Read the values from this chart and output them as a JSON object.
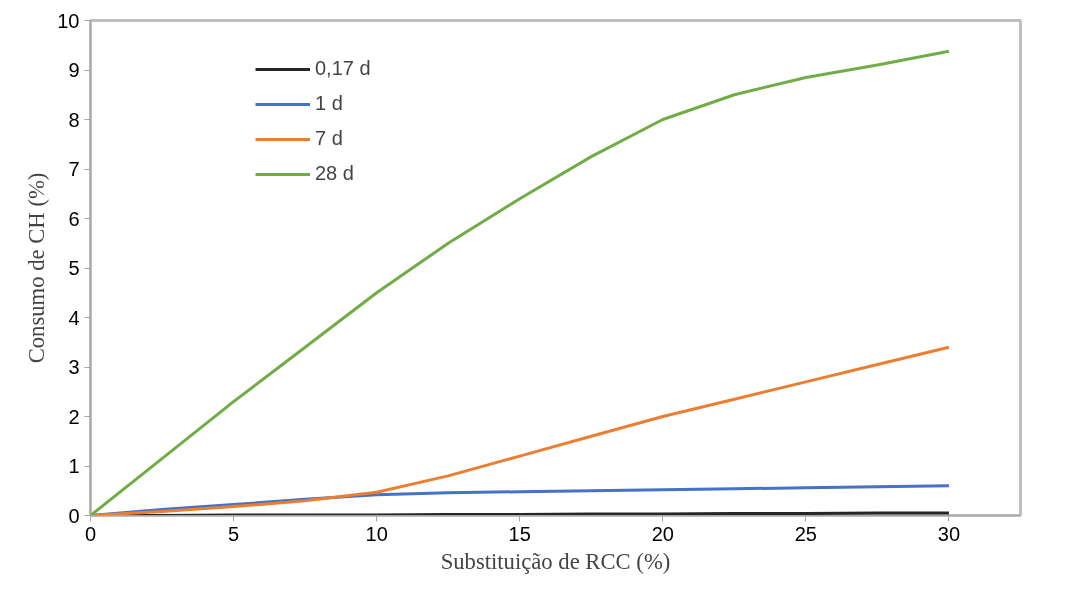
{
  "chart_data": {
    "type": "line",
    "xlabel": "Substituição de RCC (%)",
    "ylabel": "Consumo de CH (%)",
    "x": [
      0,
      2.5,
      5,
      7.5,
      10,
      12.5,
      15,
      17.5,
      20,
      22.5,
      25,
      27.5,
      30
    ],
    "series": [
      {
        "name": "0,17 d",
        "color": "#262626",
        "values": [
          0,
          0,
          0.01,
          0.01,
          0.01,
          0.02,
          0.02,
          0.03,
          0.03,
          0.04,
          0.04,
          0.05,
          0.05
        ]
      },
      {
        "name": "1 d",
        "color": "#4472c4",
        "values": [
          0,
          0.12,
          0.22,
          0.33,
          0.42,
          0.46,
          0.48,
          0.5,
          0.52,
          0.54,
          0.56,
          0.58,
          0.6
        ]
      },
      {
        "name": "7 d",
        "color": "#ed7d31",
        "values": [
          0,
          0.08,
          0.18,
          0.3,
          0.47,
          0.8,
          1.2,
          1.6,
          2.0,
          2.35,
          2.7,
          3.05,
          3.4
        ]
      },
      {
        "name": "28 d",
        "color": "#70ad47",
        "values": [
          0,
          1.15,
          2.3,
          3.4,
          4.5,
          5.5,
          6.4,
          7.25,
          8.0,
          8.5,
          8.85,
          9.1,
          9.38
        ]
      }
    ],
    "xlim": [
      0,
      32.5
    ],
    "ylim": [
      0,
      10
    ],
    "xticks": [
      0,
      5,
      10,
      15,
      20,
      25,
      30
    ],
    "yticks": [
      0,
      1,
      2,
      3,
      4,
      5,
      6,
      7,
      8,
      9,
      10
    ],
    "grid": false,
    "legend": "top left",
    "marker": "none",
    "line_style": "solid"
  }
}
